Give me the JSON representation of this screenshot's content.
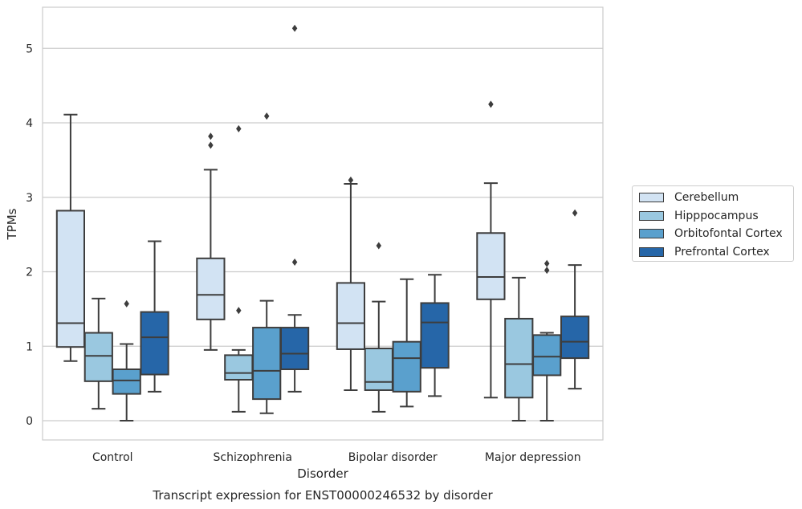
{
  "chart_data": {
    "type": "box",
    "title": "Transcript expression for ENST00000246532 by disorder",
    "xlabel": "Disorder",
    "ylabel": "TPMs",
    "ylim": [
      -0.25,
      5.55
    ],
    "yticks": [
      0,
      1,
      2,
      3,
      4,
      5
    ],
    "grid": true,
    "legend_position": "right",
    "categories": [
      "Control",
      "Schizophrenia",
      "Bipolar disorder",
      "Major depression"
    ],
    "series": [
      {
        "name": "Cerebellum",
        "color": "#d2e3f3",
        "boxes": [
          {
            "whislo": 0.8,
            "q1": 0.99,
            "med": 1.31,
            "q3": 2.82,
            "whishi": 4.11,
            "fliers": []
          },
          {
            "whislo": 0.95,
            "q1": 1.36,
            "med": 1.69,
            "q3": 2.18,
            "whishi": 3.37,
            "fliers": [
              3.7,
              3.82
            ]
          },
          {
            "whislo": 0.41,
            "q1": 0.96,
            "med": 1.31,
            "q3": 1.85,
            "whishi": 3.18,
            "fliers": [
              3.23
            ]
          },
          {
            "whislo": 0.31,
            "q1": 1.63,
            "med": 1.93,
            "q3": 2.52,
            "whishi": 3.19,
            "fliers": [
              4.25
            ]
          }
        ]
      },
      {
        "name": "Hipppocampus",
        "color": "#9ac8e0",
        "boxes": [
          {
            "whislo": 0.16,
            "q1": 0.53,
            "med": 0.87,
            "q3": 1.18,
            "whishi": 1.64,
            "fliers": []
          },
          {
            "whislo": 0.12,
            "q1": 0.55,
            "med": 0.64,
            "q3": 0.88,
            "whishi": 0.95,
            "fliers": [
              1.48,
              3.92
            ]
          },
          {
            "whislo": 0.12,
            "q1": 0.41,
            "med": 0.52,
            "q3": 0.97,
            "whishi": 1.6,
            "fliers": [
              2.35
            ]
          },
          {
            "whislo": 0.0,
            "q1": 0.31,
            "med": 0.76,
            "q3": 1.37,
            "whishi": 1.92,
            "fliers": []
          }
        ]
      },
      {
        "name": "Orbitofontal Cortex",
        "color": "#5aa0cd",
        "boxes": [
          {
            "whislo": 0.0,
            "q1": 0.36,
            "med": 0.54,
            "q3": 0.69,
            "whishi": 1.03,
            "fliers": [
              1.57
            ]
          },
          {
            "whislo": 0.1,
            "q1": 0.29,
            "med": 0.67,
            "q3": 1.25,
            "whishi": 1.61,
            "fliers": [
              4.09
            ]
          },
          {
            "whislo": 0.19,
            "q1": 0.39,
            "med": 0.84,
            "q3": 1.06,
            "whishi": 1.9,
            "fliers": []
          },
          {
            "whislo": 0.0,
            "q1": 0.61,
            "med": 0.86,
            "q3": 1.15,
            "whishi": 1.18,
            "fliers": [
              2.02,
              2.11
            ]
          }
        ]
      },
      {
        "name": "Prefrontal Cortex",
        "color": "#2666a8",
        "boxes": [
          {
            "whislo": 0.39,
            "q1": 0.62,
            "med": 1.12,
            "q3": 1.46,
            "whishi": 2.41,
            "fliers": []
          },
          {
            "whislo": 0.39,
            "q1": 0.69,
            "med": 0.9,
            "q3": 1.25,
            "whishi": 1.42,
            "fliers": [
              2.13,
              5.27
            ]
          },
          {
            "whislo": 0.33,
            "q1": 0.71,
            "med": 1.32,
            "q3": 1.58,
            "whishi": 1.96,
            "fliers": []
          },
          {
            "whislo": 0.43,
            "q1": 0.84,
            "med": 1.06,
            "q3": 1.4,
            "whishi": 2.09,
            "fliers": [
              2.79
            ]
          }
        ]
      }
    ]
  }
}
